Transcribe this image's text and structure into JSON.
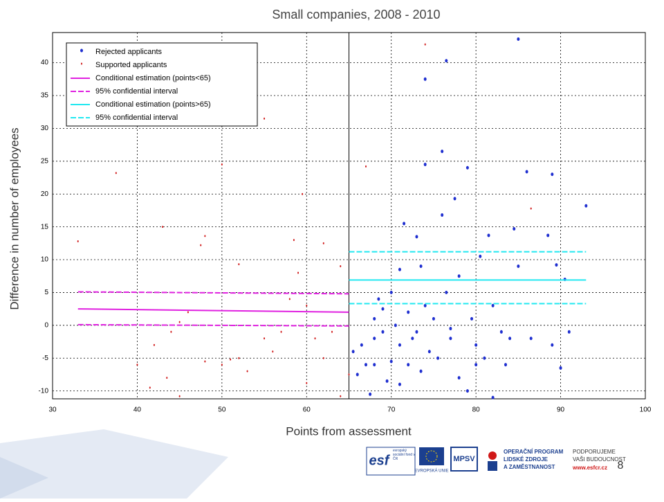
{
  "chart_data": {
    "type": "scatter",
    "title": "Small companies, 2008 - 2010",
    "xlabel": "Points from assessment",
    "ylabel": "Difference in number of employees",
    "xlim": [
      30,
      100
    ],
    "xticks": [
      30,
      40,
      50,
      60,
      70,
      80,
      90,
      100
    ],
    "ylim": [
      -11.2,
      44.6
    ],
    "yticks": [
      -10,
      -5,
      0,
      5,
      10,
      15,
      20,
      25,
      30,
      35,
      40
    ],
    "grid": true,
    "legend": "upper left",
    "cutoff": 65,
    "series": [
      {
        "name": "Rejected applicants",
        "color": "#1f2fd0",
        "marker": "dot",
        "x": [
          65.5,
          66,
          66.5,
          67,
          67.5,
          68,
          68,
          68.5,
          69,
          69,
          69.5,
          70,
          70,
          70.5,
          71,
          71,
          71.5,
          72,
          72,
          72.5,
          73,
          73,
          73.5,
          73.5,
          74,
          74,
          74,
          74.5,
          75,
          75.5,
          76,
          76,
          76.5,
          76.5,
          77,
          77.5,
          78,
          78,
          79,
          79,
          79.5,
          80,
          80.5,
          81,
          81.5,
          82,
          82,
          83,
          83.5,
          84,
          84.5,
          85,
          85,
          86,
          86.5,
          88.5,
          89,
          89.5,
          90,
          90.5,
          91,
          93,
          89,
          80,
          77,
          71,
          68
        ],
        "values": [
          -4,
          -7.5,
          -3,
          -6,
          -10.5,
          -2,
          1,
          4,
          -1,
          2.5,
          -8.5,
          5,
          -5.5,
          0,
          -3,
          8.5,
          15.5,
          2,
          -6,
          -2,
          13.5,
          -1,
          -7,
          9,
          37.5,
          24.5,
          3,
          -4,
          1,
          -5,
          16.8,
          26.5,
          40.3,
          5,
          -2,
          19.3,
          -8,
          7.5,
          24,
          -10,
          1,
          -3,
          10.5,
          -5,
          13.7,
          -11,
          3,
          -1,
          -6,
          -2,
          14.7,
          43.6,
          9,
          23.4,
          -2,
          13.7,
          23,
          9.2,
          -6.5,
          7,
          -1,
          18.2,
          -3,
          -6,
          -0.5,
          -9,
          -6
        ]
      },
      {
        "name": "Supported applicants",
        "color": "#d01818",
        "marker": "point",
        "x": [
          33,
          37.5,
          40,
          41.5,
          42,
          43,
          43.5,
          44,
          45,
          46,
          47.5,
          48,
          48,
          50,
          50,
          51,
          52,
          53,
          55,
          56,
          57,
          58,
          58.5,
          59,
          59.5,
          60,
          60,
          61,
          62,
          63,
          64,
          64,
          65,
          67,
          74,
          86.5,
          55,
          45,
          52,
          62
        ],
        "values": [
          12.8,
          23.2,
          -6,
          -9.5,
          -3,
          15,
          -8,
          -1,
          -10.8,
          2,
          12.2,
          13.6,
          -5.5,
          24.5,
          -6,
          -5.2,
          9.3,
          -7,
          31.5,
          -4,
          -1,
          4,
          13,
          8,
          20,
          -8.8,
          3,
          -2,
          12.5,
          -1,
          -10.8,
          9,
          -7.5,
          24.2,
          42.8,
          17.8,
          -2,
          0.5,
          -5,
          -5
        ]
      },
      {
        "name": "Conditional estimation (points<65)",
        "color": "#e020e0",
        "marker": "line",
        "dash": false,
        "x": [
          33,
          65
        ],
        "values": [
          2.5,
          2.0
        ]
      },
      {
        "name": "95% confidential interval",
        "color": "#e020e0",
        "marker": "line",
        "dash": true,
        "x": [
          33,
          65
        ],
        "values": [
          5.1,
          4.8
        ]
      },
      {
        "name": "95% confidential interval",
        "color": "#e020e0",
        "marker": "line",
        "dash": true,
        "legend": false,
        "x": [
          33,
          65
        ],
        "values": [
          0.1,
          -0.1
        ]
      },
      {
        "name": "Conditional estimation (points>65)",
        "color": "#20e8f0",
        "marker": "line",
        "dash": false,
        "x": [
          65,
          93
        ],
        "values": [
          6.9,
          6.9
        ]
      },
      {
        "name": "95% confidential interval",
        "color": "#20e8f0",
        "marker": "line",
        "dash": true,
        "x": [
          65,
          93
        ],
        "values": [
          11.2,
          11.2
        ]
      },
      {
        "name": "95% confidential interval",
        "color": "#20e8f0",
        "marker": "line",
        "dash": true,
        "legend": false,
        "x": [
          65,
          93
        ],
        "values": [
          3.3,
          3.3
        ]
      }
    ]
  },
  "page_number": "8",
  "footer": {
    "esf": "esf",
    "esf_text": "evropský sociální fond v ČR",
    "eu": "EVROPSKÁ UNIE",
    "mpsv": "MPSV",
    "op": [
      "OPERAČNÍ PROGRAM",
      "LIDSKÉ ZDROJE",
      "A ZAMĚSTNANOST"
    ],
    "support": [
      "PODPORUJEME",
      "VAŠI BUDOUCNOST"
    ],
    "url": "www.esfcr.cz"
  }
}
